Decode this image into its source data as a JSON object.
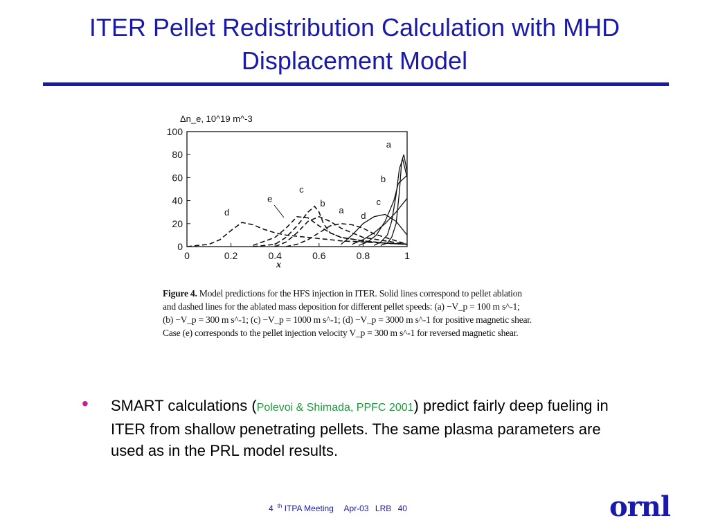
{
  "slide": {
    "title": "ITER Pellet Redistribution Calculation with MHD Displacement Model"
  },
  "chart_data": {
    "type": "line",
    "ylabel": "Δn_e, 10^19 m^-3",
    "xlabel": "x",
    "xlim": [
      0,
      1
    ],
    "ylim": [
      0,
      100
    ],
    "x_ticks": [
      "0",
      "0.2",
      "0.4",
      "0.6",
      "0.8",
      "1"
    ],
    "y_ticks": [
      "0",
      "20",
      "40",
      "60",
      "80",
      "100"
    ],
    "grid": false,
    "annotations": [
      "a",
      "b",
      "c",
      "d",
      "e",
      "c",
      "b",
      "a",
      "d"
    ],
    "series": [
      {
        "style": "solid",
        "x": [
          0.75,
          0.8,
          0.85,
          0.9,
          0.95,
          1.0
        ],
        "values": [
          2,
          6,
          12,
          20,
          30,
          42
        ]
      },
      {
        "style": "solid",
        "x": [
          0.78,
          0.82,
          0.86,
          0.9,
          0.94,
          0.96,
          1.0
        ],
        "values": [
          1,
          4,
          10,
          22,
          40,
          55,
          62
        ]
      },
      {
        "style": "solid",
        "x": [
          0.85,
          0.88,
          0.91,
          0.93,
          0.95,
          0.965,
          0.98,
          1.0
        ],
        "values": [
          1,
          4,
          10,
          22,
          45,
          68,
          76,
          60
        ]
      },
      {
        "style": "solid",
        "x": [
          0.88,
          0.91,
          0.93,
          0.95,
          0.965,
          0.975,
          0.985,
          1.0
        ],
        "values": [
          1,
          3,
          8,
          20,
          48,
          74,
          80,
          65
        ]
      },
      {
        "style": "solid",
        "x": [
          0.7,
          0.75,
          0.8,
          0.85,
          0.9,
          0.95,
          1.0
        ],
        "values": [
          2,
          10,
          20,
          26,
          28,
          22,
          10
        ]
      },
      {
        "style": "dashed",
        "x": [
          0.0,
          0.05,
          0.1,
          0.15,
          0.2,
          0.25,
          0.3,
          0.35,
          0.4,
          0.45,
          0.5,
          0.55,
          0.6,
          0.65,
          0.7,
          0.8,
          0.9,
          1.0
        ],
        "values": [
          0,
          1,
          2,
          6,
          14,
          21,
          19,
          15,
          12,
          10,
          9,
          8,
          7,
          6,
          5,
          4,
          3,
          2
        ]
      },
      {
        "style": "dashed",
        "x": [
          0.3,
          0.4,
          0.45,
          0.5,
          0.55,
          0.58,
          0.6,
          0.62,
          0.65,
          0.7,
          0.8,
          0.9,
          1.0
        ],
        "values": [
          0,
          2,
          8,
          18,
          30,
          35,
          30,
          20,
          12,
          8,
          5,
          3,
          2
        ]
      },
      {
        "style": "dashed",
        "x": [
          0.4,
          0.45,
          0.5,
          0.55,
          0.6,
          0.65,
          0.7,
          0.75,
          0.8,
          0.9,
          1.0
        ],
        "values": [
          0,
          4,
          12,
          22,
          26,
          22,
          16,
          12,
          8,
          5,
          2
        ]
      },
      {
        "style": "dashed",
        "x": [
          0.45,
          0.5,
          0.55,
          0.6,
          0.65,
          0.7,
          0.75,
          0.8,
          0.85,
          0.9,
          0.95,
          1.0
        ],
        "values": [
          0,
          2,
          6,
          12,
          18,
          20,
          19,
          16,
          11,
          8,
          5,
          2
        ]
      },
      {
        "style": "dashed",
        "x": [
          0.3,
          0.4,
          0.45,
          0.5,
          0.55,
          0.6,
          0.65,
          0.7,
          0.8,
          0.9,
          1.0
        ],
        "values": [
          1,
          8,
          16,
          26,
          25,
          18,
          12,
          8,
          5,
          3,
          2
        ]
      }
    ],
    "caption": {
      "label": "Figure 4.",
      "lines": [
        "Model predictions for the HFS injection in ITER. Solid lines correspond to pellet ablation",
        "and dashed lines for the ablated mass deposition for different pellet speeds: (a) −V_p = 100 m s^-1;",
        "(b) −V_p = 300 m s^-1; (c) −V_p = 1000 m s^-1; (d) −V_p = 3000 m s^-1 for positive magnetic shear.",
        "Case (e) corresponds to the pellet injection velocity V_p = 300 m s^-1 for reversed magnetic shear."
      ]
    }
  },
  "bullet": {
    "text_before": "SMART calculations (",
    "citation": "Polevoi & Shimada, PPFC 2001",
    "text_after": ") predict fairly deep fueling in ITER from shallow penetrating pellets. The same plasma parameters are used as in the PRL model results."
  },
  "footer": {
    "meeting_number": "4",
    "meeting_suffix": "th",
    "meeting_rest": " ITPA Meeting",
    "date": "Apr-03",
    "author": "LRB",
    "page": "40"
  },
  "logo": {
    "text": "ornl"
  },
  "colors": {
    "title": "#1a1aa8",
    "bullet": "#cc1a8f",
    "citation": "#1e9a3a"
  }
}
